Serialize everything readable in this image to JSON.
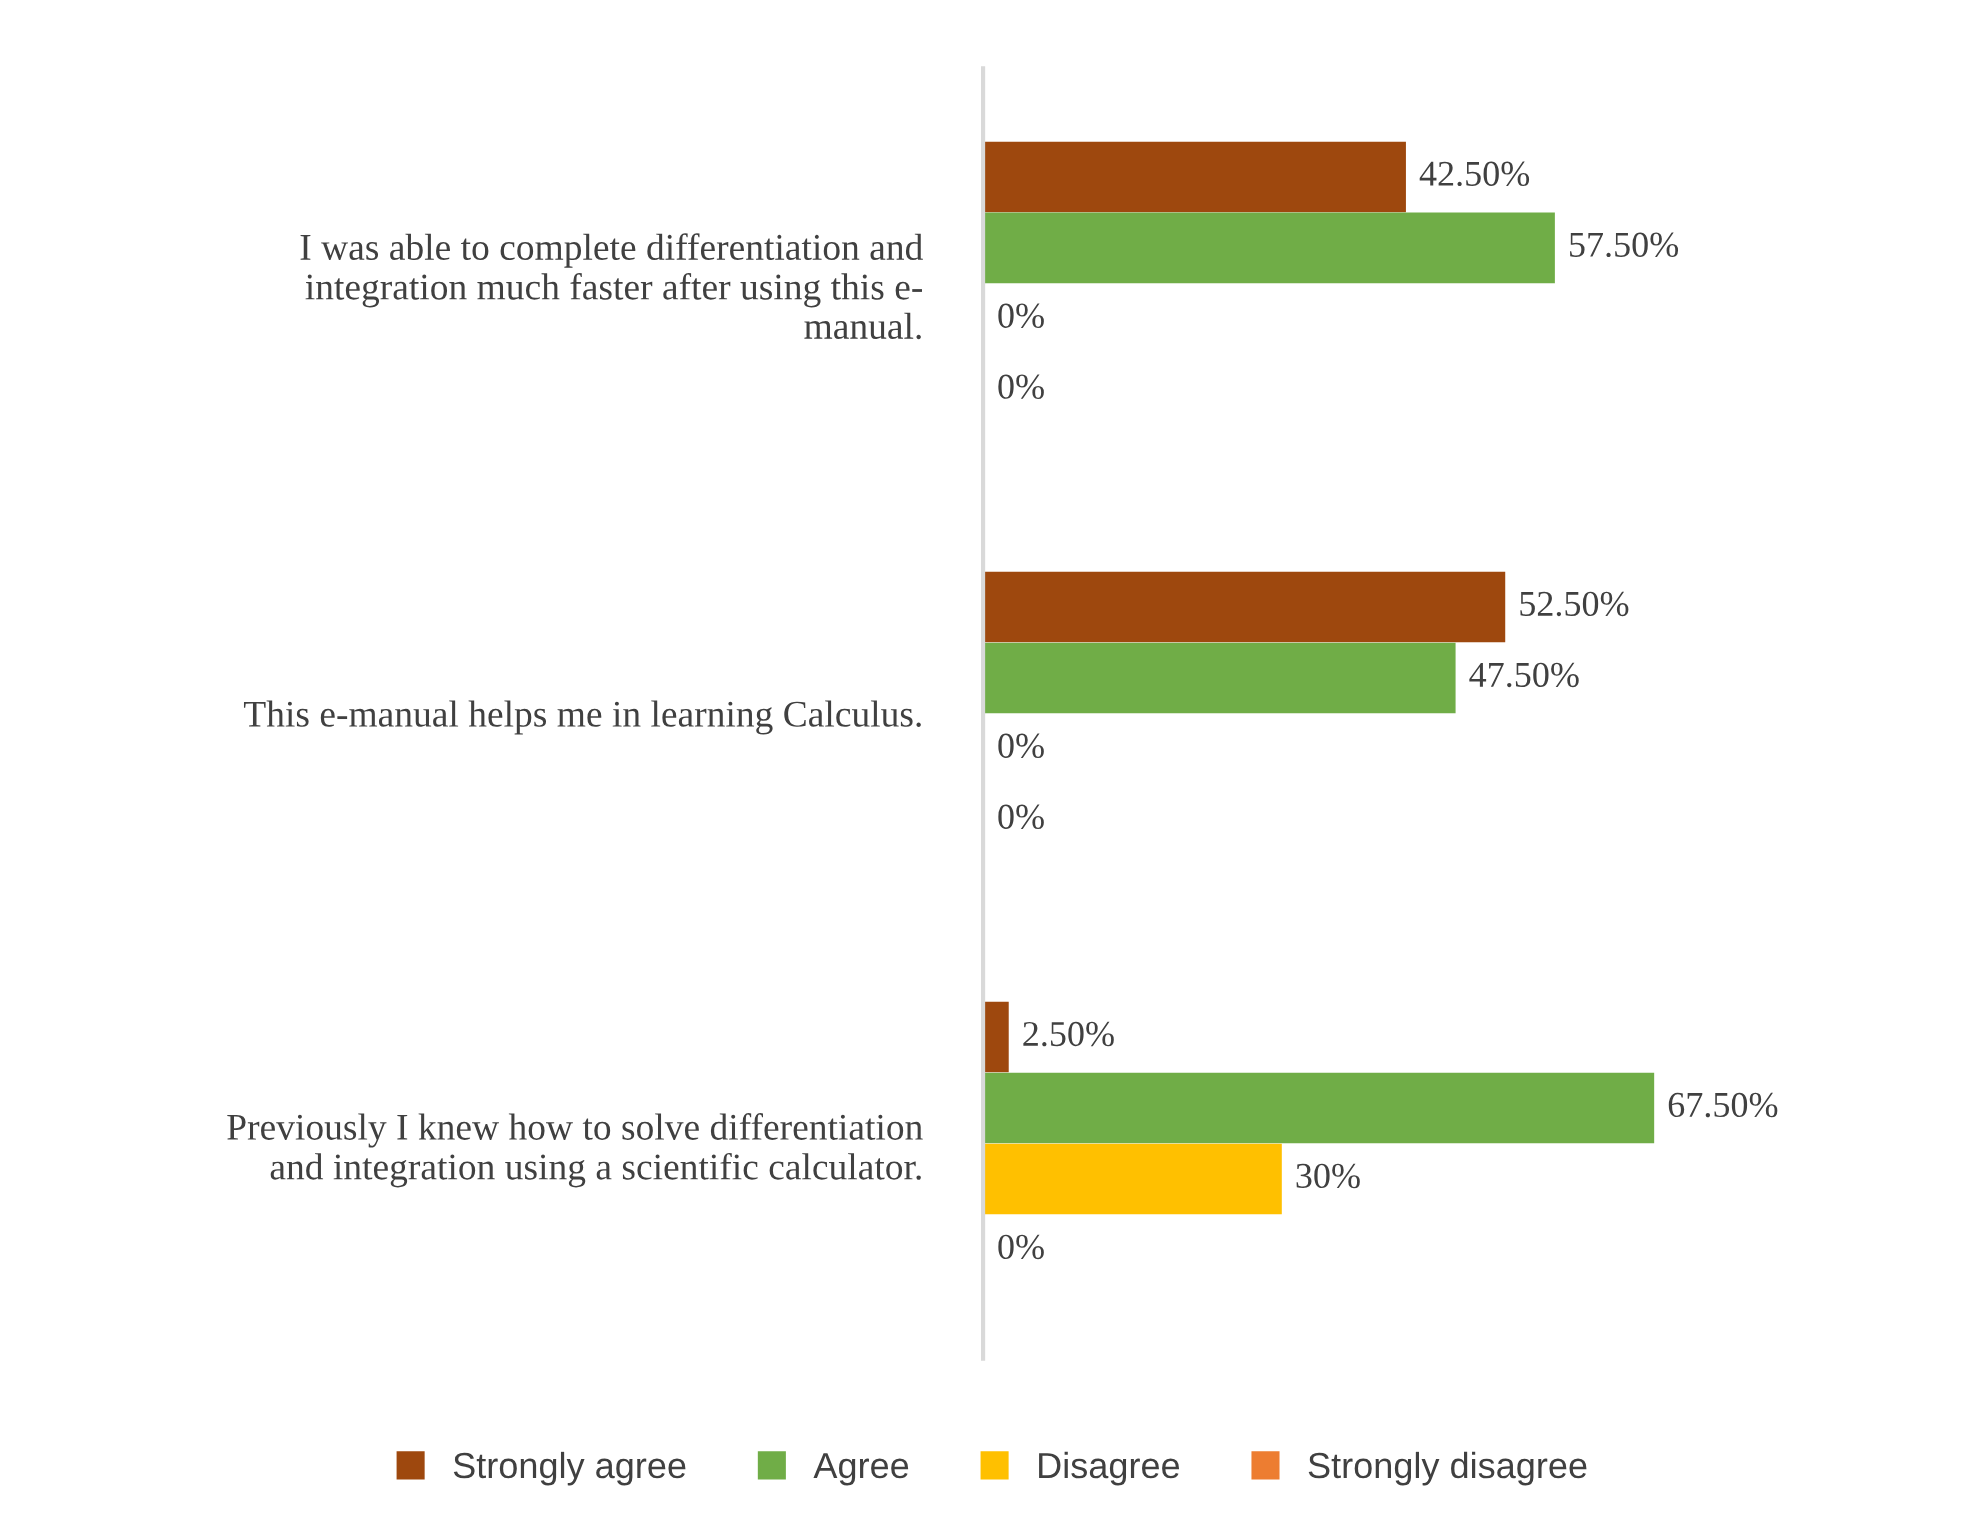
{
  "chart_data": {
    "type": "bar",
    "orientation": "horizontal",
    "categories": [
      "I was able to complete differentiation and\nintegration much faster after using this e-\nmanual.",
      "This e-manual helps me in learning Calculus.",
      "Previously I knew how to solve differentiation\nand integration using a scientific calculator."
    ],
    "series": [
      {
        "name": "Strongly agree",
        "color": "#9e480e",
        "values": [
          42.5,
          52.5,
          2.5
        ],
        "value_labels": [
          "42.50%",
          "52.50%",
          "2.50%"
        ]
      },
      {
        "name": "Agree",
        "color": "#70ad47",
        "values": [
          57.5,
          47.5,
          67.5
        ],
        "value_labels": [
          "57.50%",
          "47.50%",
          "67.50%"
        ]
      },
      {
        "name": "Disagree",
        "color": "#ffc000",
        "values": [
          0,
          0,
          30
        ],
        "value_labels": [
          "0%",
          "0%",
          "30%"
        ]
      },
      {
        "name": "Strongly disagree",
        "color": "#ed7d31",
        "values": [
          0,
          0,
          0
        ],
        "value_labels": [
          "0%",
          "0%",
          "0%"
        ]
      }
    ],
    "legend": "bottom",
    "grid": false,
    "tick_labels": "y"
  }
}
